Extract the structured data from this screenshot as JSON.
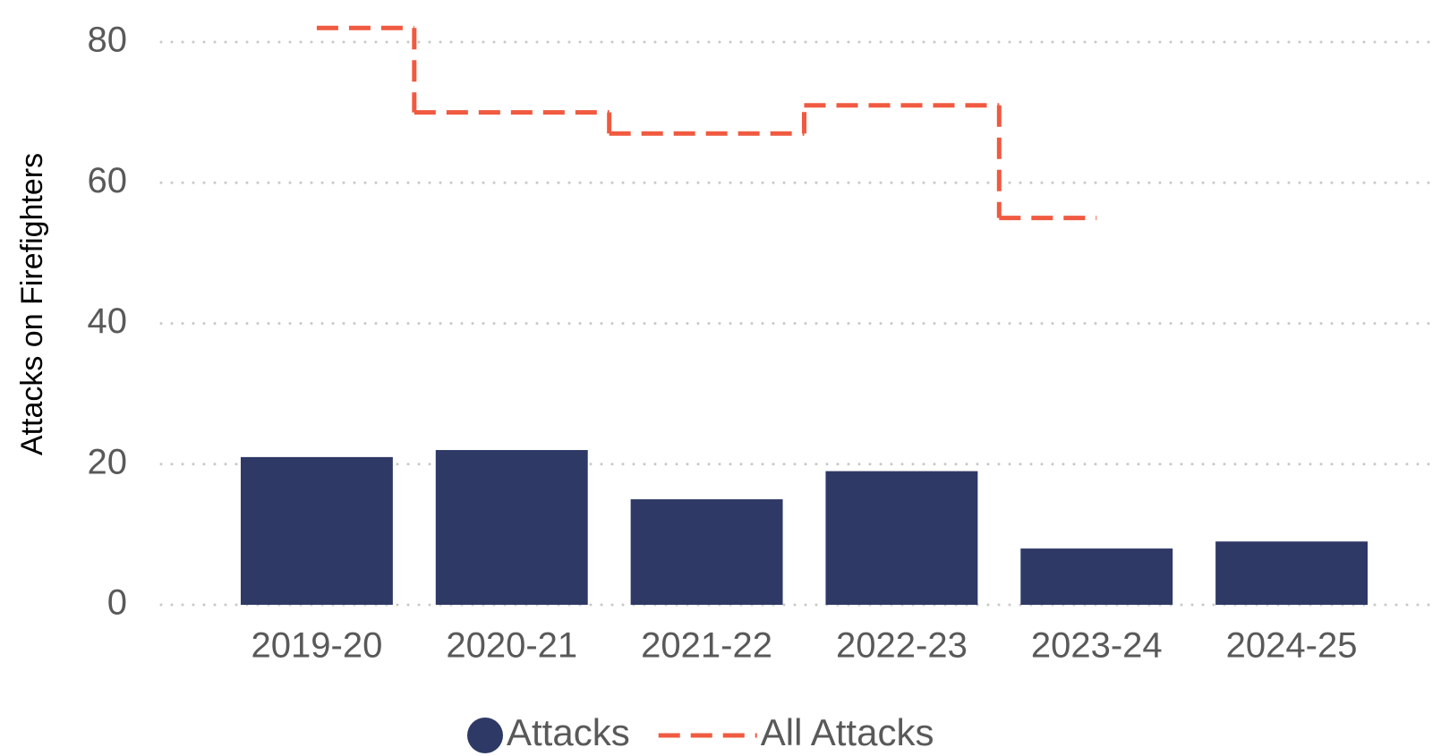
{
  "chart_data": {
    "type": "bar",
    "y_label": "Attacks on Firefighters",
    "categories": [
      "2019-20",
      "2020-21",
      "2021-22",
      "2022-23",
      "2023-24",
      "2024-25"
    ],
    "series": [
      {
        "name": "Attacks",
        "type": "bar",
        "color": "#2e3966",
        "values": [
          21,
          22,
          15,
          19,
          8,
          9
        ]
      },
      {
        "name": "All Attacks",
        "type": "step",
        "color": "#f05a40",
        "values": [
          82,
          70,
          67,
          71,
          55,
          null
        ]
      }
    ],
    "ylim": [
      0,
      80
    ],
    "yticks": [
      0,
      20,
      40,
      60,
      80
    ],
    "grid": true,
    "legend": "bottom"
  }
}
